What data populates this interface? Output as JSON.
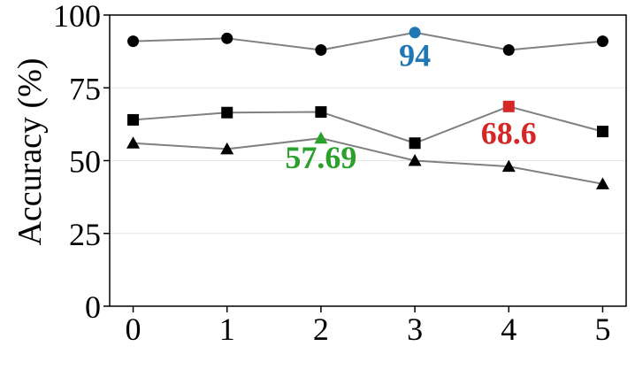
{
  "chart_data": {
    "type": "line",
    "x": [
      0,
      1,
      2,
      3,
      4,
      5
    ],
    "ylabel": "Accuracy (%)",
    "xlabel": "",
    "ylim": [
      0,
      100
    ],
    "xlim": [
      -0.25,
      5.25
    ],
    "yticks": [
      "0",
      "25",
      "50",
      "75",
      "100"
    ],
    "xticks": [
      "0",
      "1",
      "2",
      "3",
      "4",
      "5"
    ],
    "grid": "horizontal",
    "line_color": "#808080",
    "series": [
      {
        "marker": "circle",
        "values": [
          91,
          92,
          88,
          94,
          88,
          91
        ],
        "highlight_index": 3,
        "highlight_color": "#1f77b4",
        "highlight_label": "94"
      },
      {
        "marker": "square",
        "values": [
          64,
          66.5,
          66.7,
          56,
          68.6,
          60
        ],
        "highlight_index": 4,
        "highlight_color": "#d62728",
        "highlight_label": "68.6"
      },
      {
        "marker": "triangle",
        "values": [
          56,
          54,
          57.69,
          50,
          48,
          42
        ],
        "highlight_index": 2,
        "highlight_color": "#2ca02c",
        "highlight_label": "57.69"
      }
    ]
  }
}
